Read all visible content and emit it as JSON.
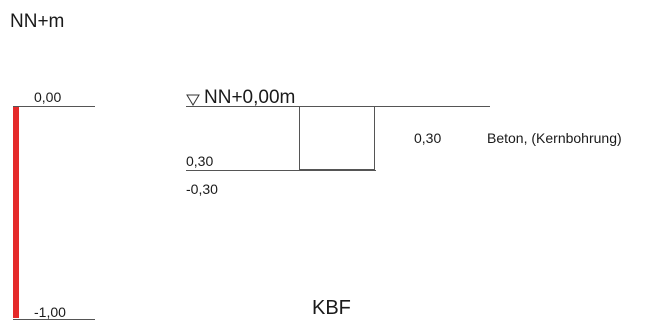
{
  "diagram": {
    "unit_label": "NN+m",
    "column_title": "KBF",
    "scale": {
      "top_label": "0,00",
      "bottom_label": "-1,00",
      "bar_color": "#e52a2a"
    },
    "reference_level": {
      "label": "NN+0,00m",
      "symbol": "water-level-triangle"
    },
    "layer": {
      "depth_label": "0,30",
      "elevation_label": "-0,30",
      "thickness_label": "0,30",
      "description": "Beton, (Kernbohrung)"
    }
  }
}
